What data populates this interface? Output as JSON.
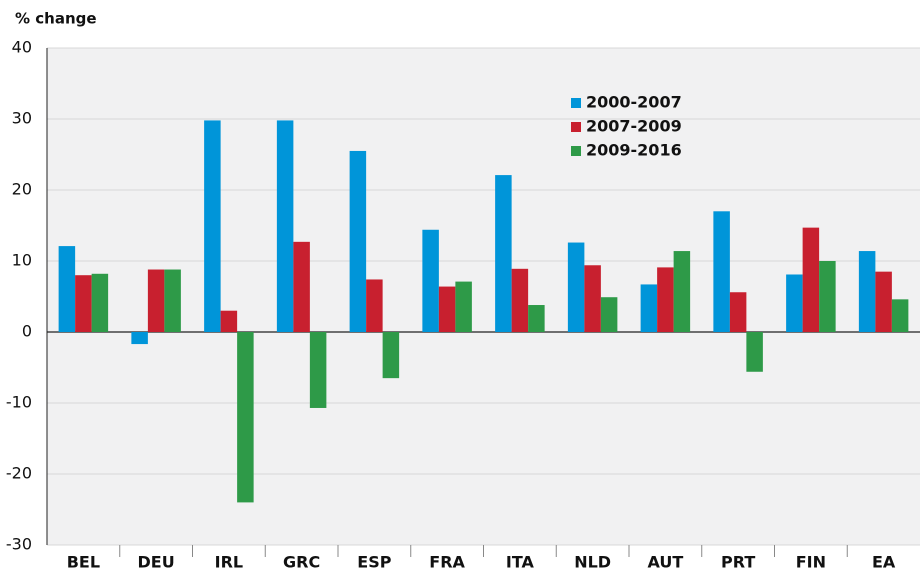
{
  "chart_data": {
    "type": "bar",
    "y_label": "% change",
    "categories": [
      "BEL",
      "DEU",
      "IRL",
      "GRC",
      "ESP",
      "FRA",
      "ITA",
      "NLD",
      "AUT",
      "PRT",
      "FIN",
      "EA"
    ],
    "series": [
      {
        "name": "2000-2007",
        "color": "#0095d9",
        "values": [
          12.1,
          -1.7,
          29.8,
          29.8,
          25.5,
          14.4,
          22.1,
          12.6,
          6.7,
          17.0,
          8.1,
          11.4
        ]
      },
      {
        "name": "2007-2009",
        "color": "#c8202f",
        "values": [
          8.0,
          8.8,
          3.0,
          12.7,
          7.4,
          6.4,
          8.9,
          9.4,
          9.1,
          5.6,
          14.7,
          8.5
        ]
      },
      {
        "name": "2009-2016",
        "color": "#2e9a48",
        "values": [
          8.2,
          8.8,
          -24.0,
          -10.7,
          -6.5,
          7.1,
          3.8,
          4.9,
          11.4,
          -5.6,
          10.0,
          4.6
        ]
      }
    ],
    "ylim": [
      -30,
      40
    ],
    "yticks": [
      -30,
      -20,
      -10,
      0,
      10,
      20,
      30,
      40
    ],
    "grid": true
  }
}
